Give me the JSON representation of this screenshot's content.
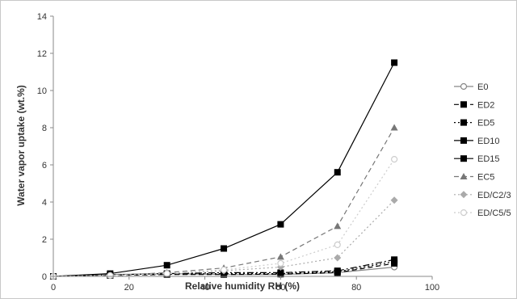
{
  "chart_data": {
    "type": "line",
    "xlabel": "Relative humidity RH (%)",
    "ylabel": "Water vapor uptake (wt.%)",
    "xlim": [
      0,
      100
    ],
    "ylim": [
      0,
      14
    ],
    "x_ticks": [
      0,
      20,
      40,
      60,
      80,
      100
    ],
    "y_ticks": [
      0,
      2,
      4,
      6,
      8,
      10,
      12,
      14
    ],
    "grid": false,
    "legend_position": "right",
    "x": [
      0,
      15,
      30,
      45,
      60,
      75,
      90
    ],
    "series": [
      {
        "name": "E0",
        "marker": "circle-open",
        "color": "#888888",
        "dash": "",
        "values": [
          0,
          0.1,
          0.15,
          0.1,
          0.1,
          0.2,
          0.5
        ]
      },
      {
        "name": "ED2",
        "marker": "square",
        "color": "#000000",
        "dash": "6,4",
        "values": [
          0,
          0.05,
          0.1,
          0.1,
          0.12,
          0.2,
          0.7
        ]
      },
      {
        "name": "ED5",
        "marker": "square",
        "color": "#000000",
        "dash": "2,3",
        "values": [
          0,
          0.05,
          0.12,
          0.15,
          0.15,
          0.25,
          0.8
        ]
      },
      {
        "name": "ED10",
        "marker": "square",
        "color": "#000000",
        "dash": "8,3,2,3",
        "values": [
          0,
          0.08,
          0.15,
          0.2,
          0.2,
          0.3,
          0.9
        ]
      },
      {
        "name": "ED15",
        "marker": "square",
        "color": "#000000",
        "dash": "",
        "values": [
          0,
          0.15,
          0.6,
          1.5,
          2.8,
          5.6,
          11.5
        ]
      },
      {
        "name": "EC5",
        "marker": "triangle",
        "color": "#777777",
        "dash": "6,4",
        "values": [
          0,
          0.05,
          0.2,
          0.45,
          1.05,
          2.7,
          8.0
        ]
      },
      {
        "name": "ED/C2/3",
        "marker": "diamond",
        "color": "#aaaaaa",
        "dash": "2,3",
        "values": [
          0,
          0.05,
          0.15,
          0.3,
          0.5,
          1.0,
          4.1
        ]
      },
      {
        "name": "ED/C5/5",
        "marker": "circle-open",
        "color": "#cccccc",
        "dash": "2,3",
        "values": [
          0,
          0.05,
          0.15,
          0.35,
          0.7,
          1.7,
          6.3
        ]
      }
    ]
  }
}
